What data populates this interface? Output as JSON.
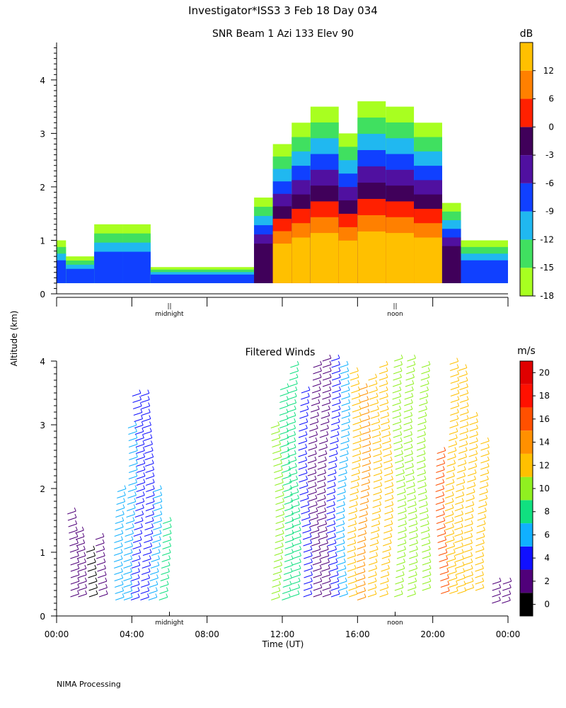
{
  "title": "Investigator*ISS3   3 Feb 18 Day 034",
  "footer": "NIMA Processing",
  "chart_data": [
    {
      "type": "heatmap",
      "title": "SNR Beam 1 Azi 133 Elev 90",
      "ylabel": "Altitude (km)",
      "ylim": [
        0,
        4.7
      ],
      "yticks": [
        "0",
        "1",
        "2",
        "3",
        "4"
      ],
      "xlim": [
        0,
        24
      ],
      "x_markers": [
        {
          "x": 6,
          "glyph": "||",
          "label": "midnight"
        },
        {
          "x": 18,
          "glyph": "||",
          "label": "noon"
        }
      ],
      "colorbar": {
        "unit": "dB",
        "ticks": [
          "12",
          "6",
          "0",
          "-3",
          "-6",
          "-9",
          "-12",
          "-15",
          "-18"
        ],
        "colors": [
          "#a8ff20",
          "#40e060",
          "#20b8f0",
          "#1040ff",
          "#5010a0",
          "#40005a",
          "#ff2000",
          "#ff8000",
          "#ffc000"
        ]
      },
      "echo_regions": [
        {
          "t_start": 0.0,
          "t_end": 0.5,
          "top_km": 1.0
        },
        {
          "t_start": 0.5,
          "t_end": 2.0,
          "top_km": 0.7
        },
        {
          "t_start": 2.0,
          "t_end": 3.5,
          "top_km": 1.3
        },
        {
          "t_start": 3.5,
          "t_end": 5.0,
          "top_km": 1.3
        },
        {
          "t_start": 5.0,
          "t_end": 10.5,
          "top_km": 0.5
        },
        {
          "t_start": 10.5,
          "t_end": 11.5,
          "top_km": 1.8
        },
        {
          "t_start": 11.5,
          "t_end": 12.5,
          "top_km": 2.8
        },
        {
          "t_start": 12.5,
          "t_end": 13.5,
          "top_km": 3.2
        },
        {
          "t_start": 13.5,
          "t_end": 15.0,
          "top_km": 3.5
        },
        {
          "t_start": 15.0,
          "t_end": 16.0,
          "top_km": 3.0
        },
        {
          "t_start": 16.0,
          "t_end": 17.5,
          "top_km": 3.6
        },
        {
          "t_start": 17.5,
          "t_end": 19.0,
          "top_km": 3.5
        },
        {
          "t_start": 19.0,
          "t_end": 20.5,
          "top_km": 3.2
        },
        {
          "t_start": 20.5,
          "t_end": 21.5,
          "top_km": 1.7
        },
        {
          "t_start": 21.5,
          "t_end": 24.0,
          "top_km": 1.0
        }
      ]
    },
    {
      "type": "scatter",
      "title": "Filtered Winds",
      "ylim": [
        0,
        4
      ],
      "yticks": [
        "0",
        "1",
        "2",
        "3",
        "4"
      ],
      "xlim": [
        0,
        24
      ],
      "xlabel": "Time (UT)",
      "xticks": [
        {
          "x": 0,
          "label": "00:00"
        },
        {
          "x": 4,
          "label": "04:00"
        },
        {
          "x": 8,
          "label": "08:00"
        },
        {
          "x": 12,
          "label": "12:00"
        },
        {
          "x": 16,
          "label": "16:00"
        },
        {
          "x": 20,
          "label": "20:00"
        },
        {
          "x": 24,
          "label": "00:00"
        }
      ],
      "x_markers": [
        {
          "x": 6,
          "label": "midnight"
        },
        {
          "x": 18,
          "label": "noon"
        }
      ],
      "colorbar": {
        "unit": "m/s",
        "ticks": [
          "0",
          "2",
          "4",
          "6",
          "8",
          "10",
          "12",
          "14",
          "16",
          "18",
          "20"
        ],
        "colors": [
          "#000000",
          "#50007a",
          "#1010ff",
          "#10b0ff",
          "#10e080",
          "#90f020",
          "#ffc000",
          "#ff9000",
          "#ff5000",
          "#ff1000",
          "#e00000"
        ]
      },
      "barb_columns": [
        {
          "t": 0.6,
          "bottom_km": 0.3,
          "top_km": 1.6,
          "speed_ms": 3
        },
        {
          "t": 1.0,
          "bottom_km": 0.3,
          "top_km": 1.3,
          "speed_ms": 2
        },
        {
          "t": 1.6,
          "bottom_km": 0.3,
          "top_km": 1.0,
          "speed_ms": 1
        },
        {
          "t": 2.2,
          "bottom_km": 0.3,
          "top_km": 1.2,
          "speed_ms": 3
        },
        {
          "t": 3.2,
          "bottom_km": 0.25,
          "top_km": 2.0,
          "speed_ms": 7
        },
        {
          "t": 3.7,
          "bottom_km": 0.25,
          "top_km": 3.0,
          "speed_ms": 6
        },
        {
          "t": 4.1,
          "bottom_km": 0.25,
          "top_km": 3.5,
          "speed_ms": 5
        },
        {
          "t": 4.6,
          "bottom_km": 0.25,
          "top_km": 3.5,
          "speed_ms": 4
        },
        {
          "t": 5.0,
          "bottom_km": 0.25,
          "top_km": 2.0,
          "speed_ms": 7
        },
        {
          "t": 5.5,
          "bottom_km": 0.25,
          "top_km": 1.5,
          "speed_ms": 8
        },
        {
          "t": 11.5,
          "bottom_km": 0.25,
          "top_km": 3.0,
          "speed_ms": 10
        },
        {
          "t": 12.0,
          "bottom_km": 0.25,
          "top_km": 3.6,
          "speed_ms": 9
        },
        {
          "t": 12.4,
          "bottom_km": 0.3,
          "top_km": 3.9,
          "speed_ms": 8
        },
        {
          "t": 13.0,
          "bottom_km": 0.3,
          "top_km": 3.5,
          "speed_ms": 4
        },
        {
          "t": 13.5,
          "bottom_km": 0.3,
          "top_km": 3.9,
          "speed_ms": 3
        },
        {
          "t": 14.0,
          "bottom_km": 0.3,
          "top_km": 4.0,
          "speed_ms": 3
        },
        {
          "t": 14.5,
          "bottom_km": 0.3,
          "top_km": 4.0,
          "speed_ms": 4
        },
        {
          "t": 15.0,
          "bottom_km": 0.3,
          "top_km": 3.9,
          "speed_ms": 6
        },
        {
          "t": 15.6,
          "bottom_km": 0.3,
          "top_km": 3.8,
          "speed_ms": 13
        },
        {
          "t": 16.1,
          "bottom_km": 0.25,
          "top_km": 3.6,
          "speed_ms": 15
        },
        {
          "t": 16.7,
          "bottom_km": 0.3,
          "top_km": 3.7,
          "speed_ms": 12
        },
        {
          "t": 17.3,
          "bottom_km": 0.3,
          "top_km": 3.9,
          "speed_ms": 12
        },
        {
          "t": 18.0,
          "bottom_km": 0.3,
          "top_km": 4.0,
          "speed_ms": 11
        },
        {
          "t": 18.6,
          "bottom_km": 0.3,
          "top_km": 4.0,
          "speed_ms": 10
        },
        {
          "t": 19.3,
          "bottom_km": 0.4,
          "top_km": 3.9,
          "speed_ms": 11
        },
        {
          "t": 20.3,
          "bottom_km": 0.35,
          "top_km": 2.6,
          "speed_ms": 16
        },
        {
          "t": 20.8,
          "bottom_km": 0.35,
          "top_km": 4.0,
          "speed_ms": 12
        },
        {
          "t": 21.3,
          "bottom_km": 0.35,
          "top_km": 3.9,
          "speed_ms": 12
        },
        {
          "t": 21.8,
          "bottom_km": 0.4,
          "top_km": 3.1,
          "speed_ms": 13
        },
        {
          "t": 22.4,
          "bottom_km": 0.4,
          "top_km": 2.7,
          "speed_ms": 13
        },
        {
          "t": 23.3,
          "bottom_km": 0.2,
          "top_km": 0.55,
          "speed_ms": 2
        },
        {
          "t": 23.8,
          "bottom_km": 0.2,
          "top_km": 0.5,
          "speed_ms": 2
        }
      ]
    }
  ]
}
